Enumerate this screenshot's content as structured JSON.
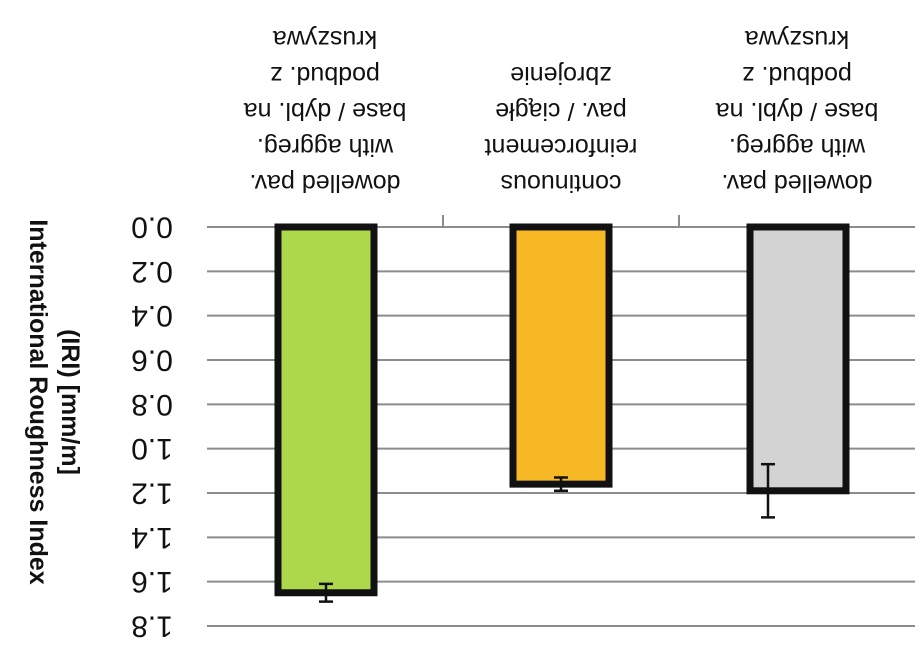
{
  "chart_data": {
    "type": "bar",
    "orientation": "vertical, image mirrored (upside-down text, y-axis increasing downward)",
    "title": "",
    "xlabel": "",
    "ylabel": "International Roughness Index (IRI) [mm/m]",
    "ylim": [
      0,
      1.8
    ],
    "yticks": [
      "0.0",
      "0.2",
      "0.4",
      "0.6",
      "0.8",
      "1.0",
      "1.2",
      "1.4",
      "1.6",
      "1.8"
    ],
    "grid": true,
    "legend": "none",
    "categories": [
      [
        "dowelled pav.",
        "with aggreg.",
        "base / dybl. na",
        "podbud. z",
        "kruszywa"
      ],
      [
        "continuous",
        "reinforcement",
        "pav. / ciągłe",
        "zbrojenie"
      ],
      [
        "dowelled pav.",
        "with aggreg.",
        "base / dybl. na",
        "podbud. z",
        "kruszywa"
      ]
    ],
    "values": [
      1.65,
      1.16,
      1.19
    ],
    "errors": [
      0.04,
      0.03,
      0.12
    ],
    "colors": [
      "#aed84b",
      "#f6b925",
      "#d3d3d3"
    ]
  }
}
